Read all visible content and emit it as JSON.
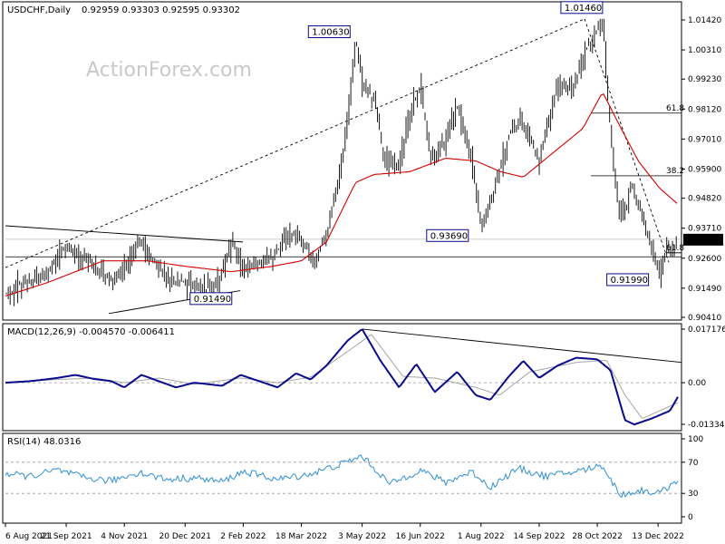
{
  "chart_data": [
    {
      "type": "candlestick",
      "panel": "price",
      "header": {
        "symbol_label": "USDCHF,Daily",
        "ohlc_label": "0.92959 0.93303 0.92595 0.93302"
      },
      "watermark": "ActionForex.com",
      "current_price_label": "0.93302",
      "y_ticks": [
        "1.01420",
        "1.00310",
        "0.99230",
        "0.98120",
        "0.97010",
        "0.95900",
        "0.94820",
        "0.93710",
        "0.92600",
        "0.91490",
        "0.90410"
      ],
      "ylim": [
        0.9041,
        1.0142
      ],
      "swing_labels": [
        {
          "text": "1.00630",
          "date": "2022-04-28",
          "value": 1.0063
        },
        {
          "text": "1.01460",
          "date": "2022-11-01",
          "value": 1.0146
        },
        {
          "text": "0.93690",
          "date": "2022-08-01",
          "value": 0.9369
        },
        {
          "text": "0.91490",
          "date": "2022-01-12",
          "value": 0.9149
        },
        {
          "text": "0.91990",
          "date": "2022-12-14",
          "value": 0.9199
        }
      ],
      "fib_levels": [
        {
          "label": "61.8",
          "value": 0.9797
        },
        {
          "label": "38.2",
          "value": 0.9565
        },
        {
          "label": "61.8",
          "value": 0.928
        }
      ],
      "series": [
        {
          "name": "USDCHF",
          "points": [
            [
              "2021-08-06",
              0.912
            ],
            [
              "2021-08-20",
              0.917
            ],
            [
              "2021-09-03",
              0.919
            ],
            [
              "2021-09-14",
              0.926
            ],
            [
              "2021-09-21",
              0.931
            ],
            [
              "2021-09-28",
              0.927
            ],
            [
              "2021-10-10",
              0.924
            ],
            [
              "2021-10-25",
              0.918
            ],
            [
              "2021-11-04",
              0.923
            ],
            [
              "2021-11-15",
              0.932
            ],
            [
              "2021-11-24",
              0.926
            ],
            [
              "2021-12-06",
              0.919
            ],
            [
              "2021-12-20",
              0.917
            ],
            [
              "2022-01-03",
              0.915
            ],
            [
              "2022-01-12",
              0.9149
            ],
            [
              "2022-01-25",
              0.931
            ],
            [
              "2022-02-02",
              0.922
            ],
            [
              "2022-02-14",
              0.924
            ],
            [
              "2022-02-24",
              0.926
            ],
            [
              "2022-03-07",
              0.935
            ],
            [
              "2022-03-18",
              0.932
            ],
            [
              "2022-03-28",
              0.925
            ],
            [
              "2022-04-06",
              0.935
            ],
            [
              "2022-04-18",
              0.962
            ],
            [
              "2022-04-28",
              1.0063
            ],
            [
              "2022-05-03",
              0.99
            ],
            [
              "2022-05-12",
              0.985
            ],
            [
              "2022-05-20",
              0.962
            ],
            [
              "2022-05-31",
              0.96
            ],
            [
              "2022-06-08",
              0.98
            ],
            [
              "2022-06-16",
              0.99
            ],
            [
              "2022-06-24",
              0.962
            ],
            [
              "2022-07-05",
              0.97
            ],
            [
              "2022-07-14",
              0.982
            ],
            [
              "2022-07-25",
              0.962
            ],
            [
              "2022-08-01",
              0.9369
            ],
            [
              "2022-08-10",
              0.95
            ],
            [
              "2022-08-22",
              0.972
            ],
            [
              "2022-08-31",
              0.978
            ],
            [
              "2022-09-14",
              0.962
            ],
            [
              "2022-09-28",
              0.99
            ],
            [
              "2022-10-10",
              0.99
            ],
            [
              "2022-10-21",
              1.005
            ],
            [
              "2022-11-01",
              1.0146
            ],
            [
              "2022-11-04",
              0.99
            ],
            [
              "2022-11-10",
              0.955
            ],
            [
              "2022-11-15",
              0.94
            ],
            [
              "2022-11-23",
              0.952
            ],
            [
              "2022-11-30",
              0.943
            ],
            [
              "2022-12-06",
              0.933
            ],
            [
              "2022-12-14",
              0.9199
            ],
            [
              "2022-12-20",
              0.931
            ],
            [
              "2022-12-23",
              0.9275
            ],
            [
              "2022-12-28",
              0.93302
            ]
          ]
        },
        {
          "name": "moving average",
          "points": [
            [
              "2021-08-06",
              0.912
            ],
            [
              "2021-09-07",
              0.917
            ],
            [
              "2021-10-19",
              0.925
            ],
            [
              "2021-11-22",
              0.925
            ],
            [
              "2021-12-20",
              0.923
            ],
            [
              "2022-01-24",
              0.921
            ],
            [
              "2022-02-24",
              0.923
            ],
            [
              "2022-03-18",
              0.925
            ],
            [
              "2022-04-06",
              0.932
            ],
            [
              "2022-04-28",
              0.954
            ],
            [
              "2022-05-12",
              0.957
            ],
            [
              "2022-06-08",
              0.958
            ],
            [
              "2022-07-05",
              0.963
            ],
            [
              "2022-07-28",
              0.962
            ],
            [
              "2022-08-16",
              0.958
            ],
            [
              "2022-09-02",
              0.956
            ],
            [
              "2022-09-22",
              0.964
            ],
            [
              "2022-10-17",
              0.974
            ],
            [
              "2022-11-01",
              0.9875
            ],
            [
              "2022-11-14",
              0.975
            ],
            [
              "2022-11-28",
              0.962
            ],
            [
              "2022-12-14",
              0.952
            ],
            [
              "2022-12-28",
              0.946
            ]
          ]
        }
      ]
    },
    {
      "type": "line",
      "panel": "MACD",
      "header": "MACD(12,26,9) -0.004570 -0.006411",
      "y_ticks": [
        "0.017176",
        "0.00",
        "-0.01334"
      ],
      "ylim": [
        -0.01334,
        0.017176
      ],
      "series": [
        {
          "name": "MACD",
          "points": [
            [
              "2021-08-06",
              0.0
            ],
            [
              "2021-08-25",
              0.0005
            ],
            [
              "2021-09-14",
              0.0015
            ],
            [
              "2021-09-28",
              0.0025
            ],
            [
              "2021-10-12",
              0.0012
            ],
            [
              "2021-10-25",
              0.0005
            ],
            [
              "2021-11-04",
              -0.0015
            ],
            [
              "2021-11-17",
              0.0025
            ],
            [
              "2021-11-30",
              0.0005
            ],
            [
              "2021-12-13",
              -0.0015
            ],
            [
              "2021-12-27",
              0.0
            ],
            [
              "2022-01-07",
              -0.0005
            ],
            [
              "2022-01-17",
              -0.001
            ],
            [
              "2022-01-31",
              0.0025
            ],
            [
              "2022-02-14",
              0.0005
            ],
            [
              "2022-02-28",
              -0.0015
            ],
            [
              "2022-03-14",
              0.003
            ],
            [
              "2022-03-25",
              0.001
            ],
            [
              "2022-04-06",
              0.0055
            ],
            [
              "2022-04-22",
              0.0135
            ],
            [
              "2022-05-03",
              0.0172
            ],
            [
              "2022-05-17",
              0.007
            ],
            [
              "2022-05-31",
              -0.0015
            ],
            [
              "2022-06-13",
              0.006
            ],
            [
              "2022-06-27",
              -0.003
            ],
            [
              "2022-07-14",
              0.0035
            ],
            [
              "2022-07-28",
              -0.004
            ],
            [
              "2022-08-08",
              -0.0055
            ],
            [
              "2022-08-22",
              0.002
            ],
            [
              "2022-09-02",
              0.007
            ],
            [
              "2022-09-14",
              0.0015
            ],
            [
              "2022-09-28",
              0.0055
            ],
            [
              "2022-10-12",
              0.008
            ],
            [
              "2022-10-28",
              0.0075
            ],
            [
              "2022-11-07",
              0.004
            ],
            [
              "2022-11-18",
              -0.012
            ],
            [
              "2022-11-25",
              -0.0134
            ],
            [
              "2022-12-08",
              -0.0115
            ],
            [
              "2022-12-22",
              -0.009
            ],
            [
              "2022-12-28",
              -0.00457
            ]
          ]
        },
        {
          "name": "Signal",
          "points": [
            [
              "2021-08-06",
              0.0002
            ],
            [
              "2021-09-14",
              0.001
            ],
            [
              "2021-10-12",
              0.0015
            ],
            [
              "2021-11-04",
              0.0
            ],
            [
              "2021-11-30",
              0.0015
            ],
            [
              "2021-12-27",
              -0.0005
            ],
            [
              "2022-01-31",
              0.0015
            ],
            [
              "2022-02-28",
              0.0
            ],
            [
              "2022-03-25",
              0.0018
            ],
            [
              "2022-04-22",
              0.01
            ],
            [
              "2022-05-10",
              0.0155
            ],
            [
              "2022-06-03",
              0.002
            ],
            [
              "2022-06-27",
              0.0015
            ],
            [
              "2022-07-28",
              -0.0015
            ],
            [
              "2022-08-15",
              -0.004
            ],
            [
              "2022-09-07",
              0.0035
            ],
            [
              "2022-10-12",
              0.0065
            ],
            [
              "2022-11-04",
              0.0072
            ],
            [
              "2022-11-18",
              -0.004
            ],
            [
              "2022-12-01",
              -0.0115
            ],
            [
              "2022-12-28",
              -0.006411
            ]
          ]
        }
      ]
    },
    {
      "type": "line",
      "panel": "RSI",
      "header": "RSI(14) 48.0316",
      "y_ticks": [
        "100",
        "70",
        "30",
        "0"
      ],
      "ylim": [
        0,
        100
      ],
      "series": [
        {
          "name": "RSI",
          "points": [
            [
              "2021-08-06",
              55
            ],
            [
              "2021-08-25",
              52
            ],
            [
              "2021-09-14",
              60
            ],
            [
              "2021-10-05",
              50
            ],
            [
              "2021-10-25",
              46
            ],
            [
              "2021-11-15",
              57
            ],
            [
              "2021-12-06",
              48
            ],
            [
              "2021-12-27",
              50
            ],
            [
              "2022-01-17",
              45
            ],
            [
              "2022-02-02",
              58
            ],
            [
              "2022-02-28",
              48
            ],
            [
              "2022-03-25",
              55
            ],
            [
              "2022-04-18",
              68
            ],
            [
              "2022-05-03",
              78
            ],
            [
              "2022-05-24",
              42
            ],
            [
              "2022-06-16",
              60
            ],
            [
              "2022-07-05",
              44
            ],
            [
              "2022-07-25",
              58
            ],
            [
              "2022-08-08",
              38
            ],
            [
              "2022-08-29",
              62
            ],
            [
              "2022-09-19",
              52
            ],
            [
              "2022-10-12",
              58
            ],
            [
              "2022-11-01",
              66
            ],
            [
              "2022-11-14",
              28
            ],
            [
              "2022-12-01",
              34
            ],
            [
              "2022-12-14",
              30
            ],
            [
              "2022-12-28",
              48.03
            ]
          ]
        }
      ]
    }
  ],
  "x_axis": {
    "tick_labels": [
      "6 Aug 2021",
      "21 Sep 2021",
      "4 Nov 2021",
      "20 Dec 2021",
      "2 Feb 2022",
      "18 Mar 2022",
      "3 May 2022",
      "16 Jun 2022",
      "1 Aug 2022",
      "14 Sep 2022",
      "28 Oct 2022",
      "13 Dec 2022"
    ],
    "tick_dates": [
      "2021-08-06",
      "2021-09-21",
      "2021-11-04",
      "2021-12-20",
      "2022-02-02",
      "2022-03-18",
      "2022-05-03",
      "2022-06-16",
      "2022-08-01",
      "2022-09-14",
      "2022-10-28",
      "2022-12-13"
    ]
  },
  "colors": {
    "price": "#000000",
    "moving_average": "#d40000",
    "macd": "#0a0a8c",
    "signal": "#a6a6a6",
    "rsi": "#2f8fd6",
    "label_box": "#0a0a8c",
    "current_price_bg": "#000000"
  }
}
